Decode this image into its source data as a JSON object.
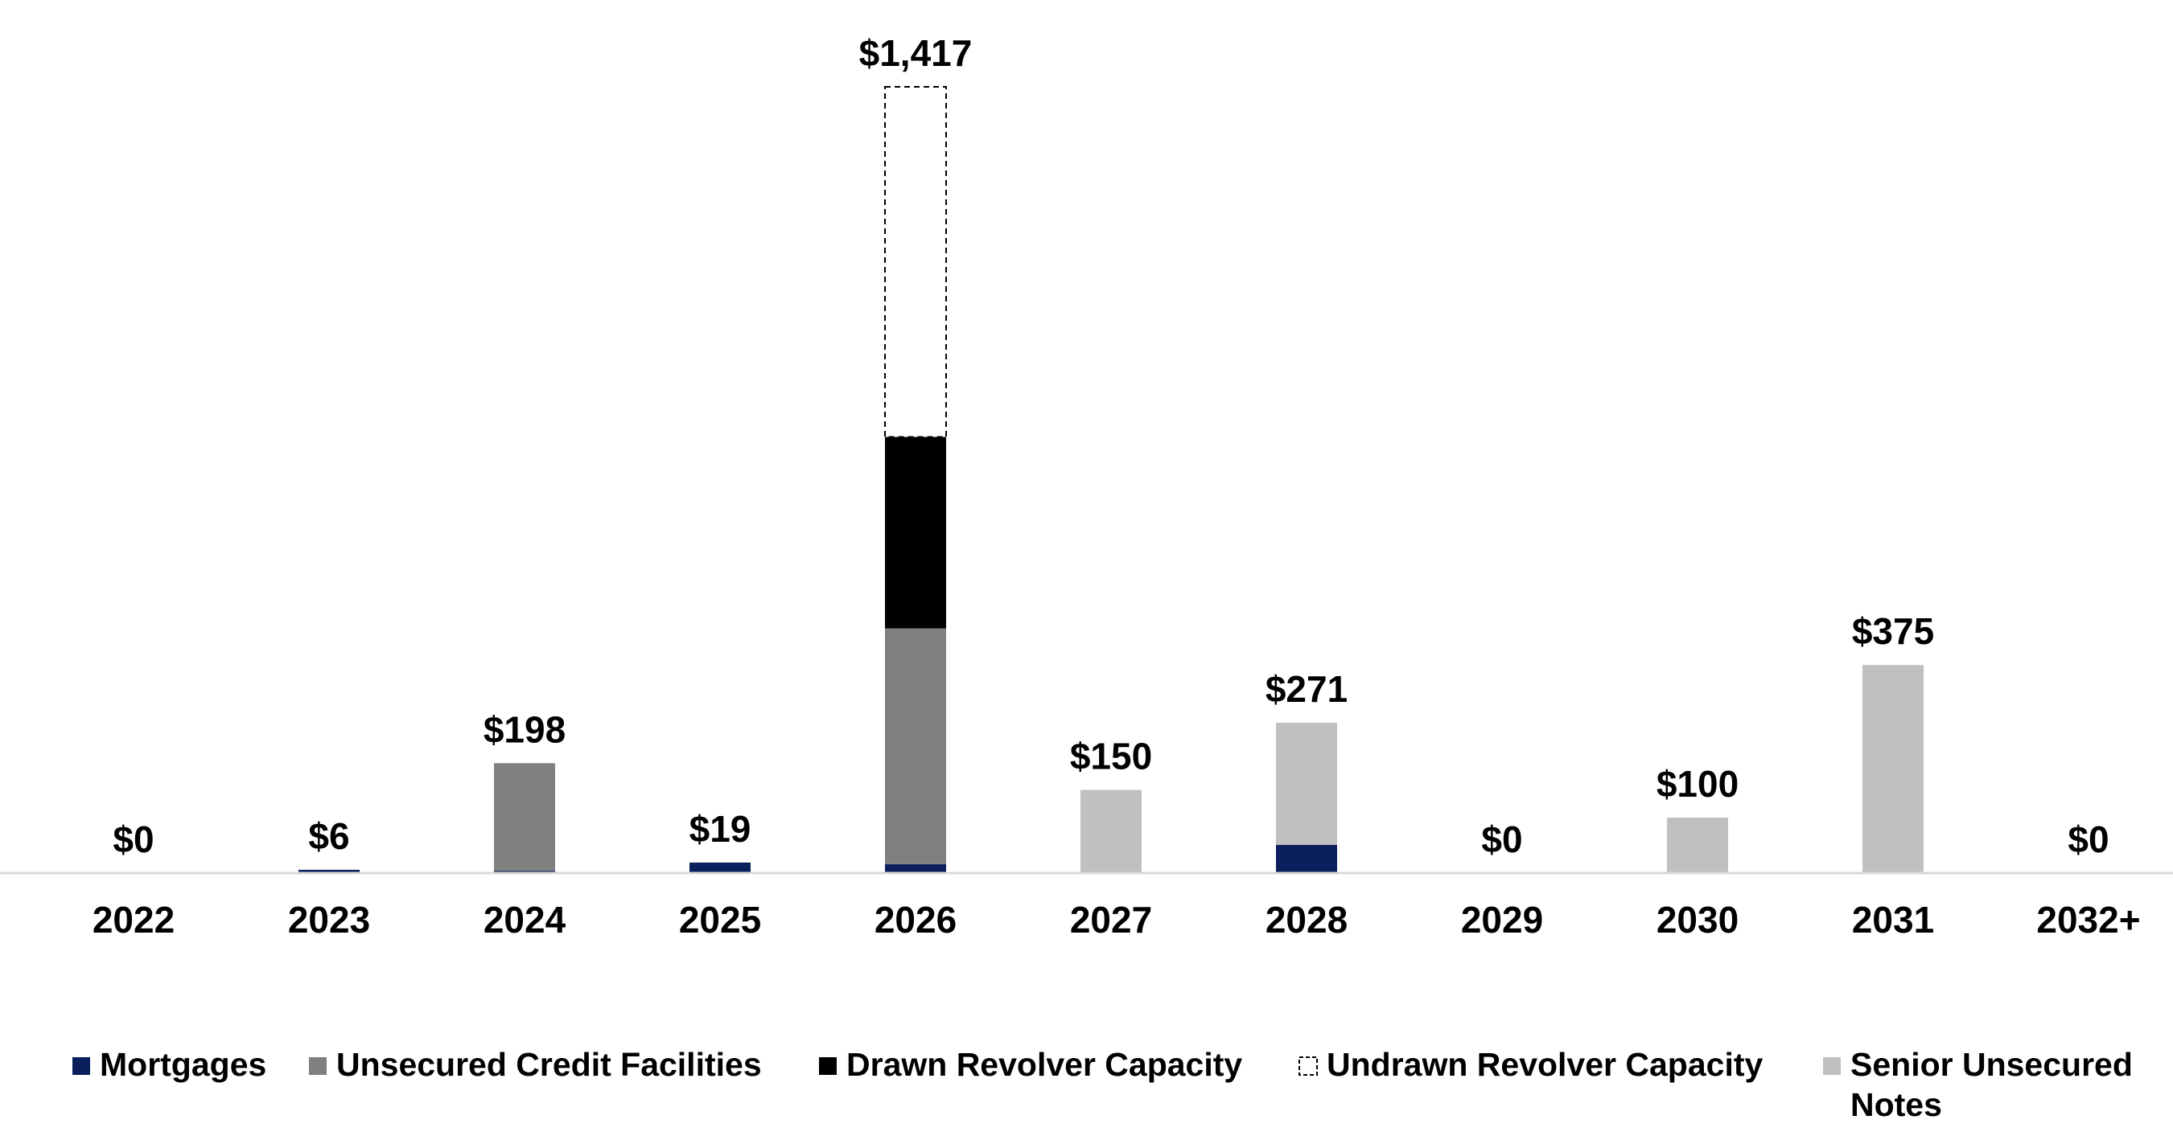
{
  "chart_data": {
    "type": "bar",
    "stacked": true,
    "categories": [
      "2022",
      "2023",
      "2024",
      "2025",
      "2026",
      "2027",
      "2028",
      "2029",
      "2030",
      "2031",
      "2032+"
    ],
    "series": [
      {
        "name": "Mortgages",
        "color": "#0a1f5c",
        "values": [
          0,
          6,
          4,
          19,
          16,
          0,
          51,
          0,
          0,
          0,
          0
        ]
      },
      {
        "name": "Unsecured Credit Facilities",
        "color": "#808080",
        "values": [
          0,
          0,
          194,
          0,
          425,
          0,
          0,
          0,
          0,
          0,
          0
        ]
      },
      {
        "name": "Drawn Revolver Capacity",
        "color": "#000000",
        "values": [
          0,
          0,
          0,
          0,
          345,
          0,
          0,
          0,
          0,
          0,
          0
        ]
      },
      {
        "name": "Undrawn Revolver Capacity",
        "color": "#ffffff",
        "dashed": true,
        "values": [
          0,
          0,
          0,
          0,
          631,
          0,
          0,
          0,
          0,
          0,
          0
        ]
      },
      {
        "name": "Senior Unsecured Notes",
        "color": "#c0c0c0",
        "values": [
          0,
          0,
          0,
          0,
          0,
          150,
          220,
          0,
          100,
          375,
          0
        ]
      }
    ],
    "data_labels": [
      "$0",
      "$6",
      "$198",
      "$19",
      "$1,417",
      "$150",
      "$271",
      "$0",
      "$100",
      "$375",
      "$0"
    ],
    "totals": [
      0,
      6,
      198,
      19,
      1417,
      150,
      271,
      0,
      100,
      375,
      0
    ],
    "ylim": [
      0,
      1417
    ],
    "legend_position": "bottom",
    "legend": [
      {
        "name": "Mortgages",
        "lines": [
          "Mortgages"
        ]
      },
      {
        "name": "Unsecured Credit Facilities",
        "lines": [
          "Unsecured Credit Facilities"
        ]
      },
      {
        "name": "Drawn Revolver Capacity",
        "lines": [
          "Drawn Revolver Capacity"
        ]
      },
      {
        "name": "Undrawn Revolver Capacity",
        "lines": [
          "Undrawn Revolver Capacity"
        ]
      },
      {
        "name": "Senior Unsecured Notes",
        "lines": [
          "Senior Unsecured",
          "Notes"
        ]
      }
    ],
    "title": "",
    "xlabel": "",
    "ylabel": "",
    "grid": false,
    "colors": {
      "axis": "#d9d9d9",
      "text": "#000000",
      "dash_border": "#000000"
    }
  }
}
